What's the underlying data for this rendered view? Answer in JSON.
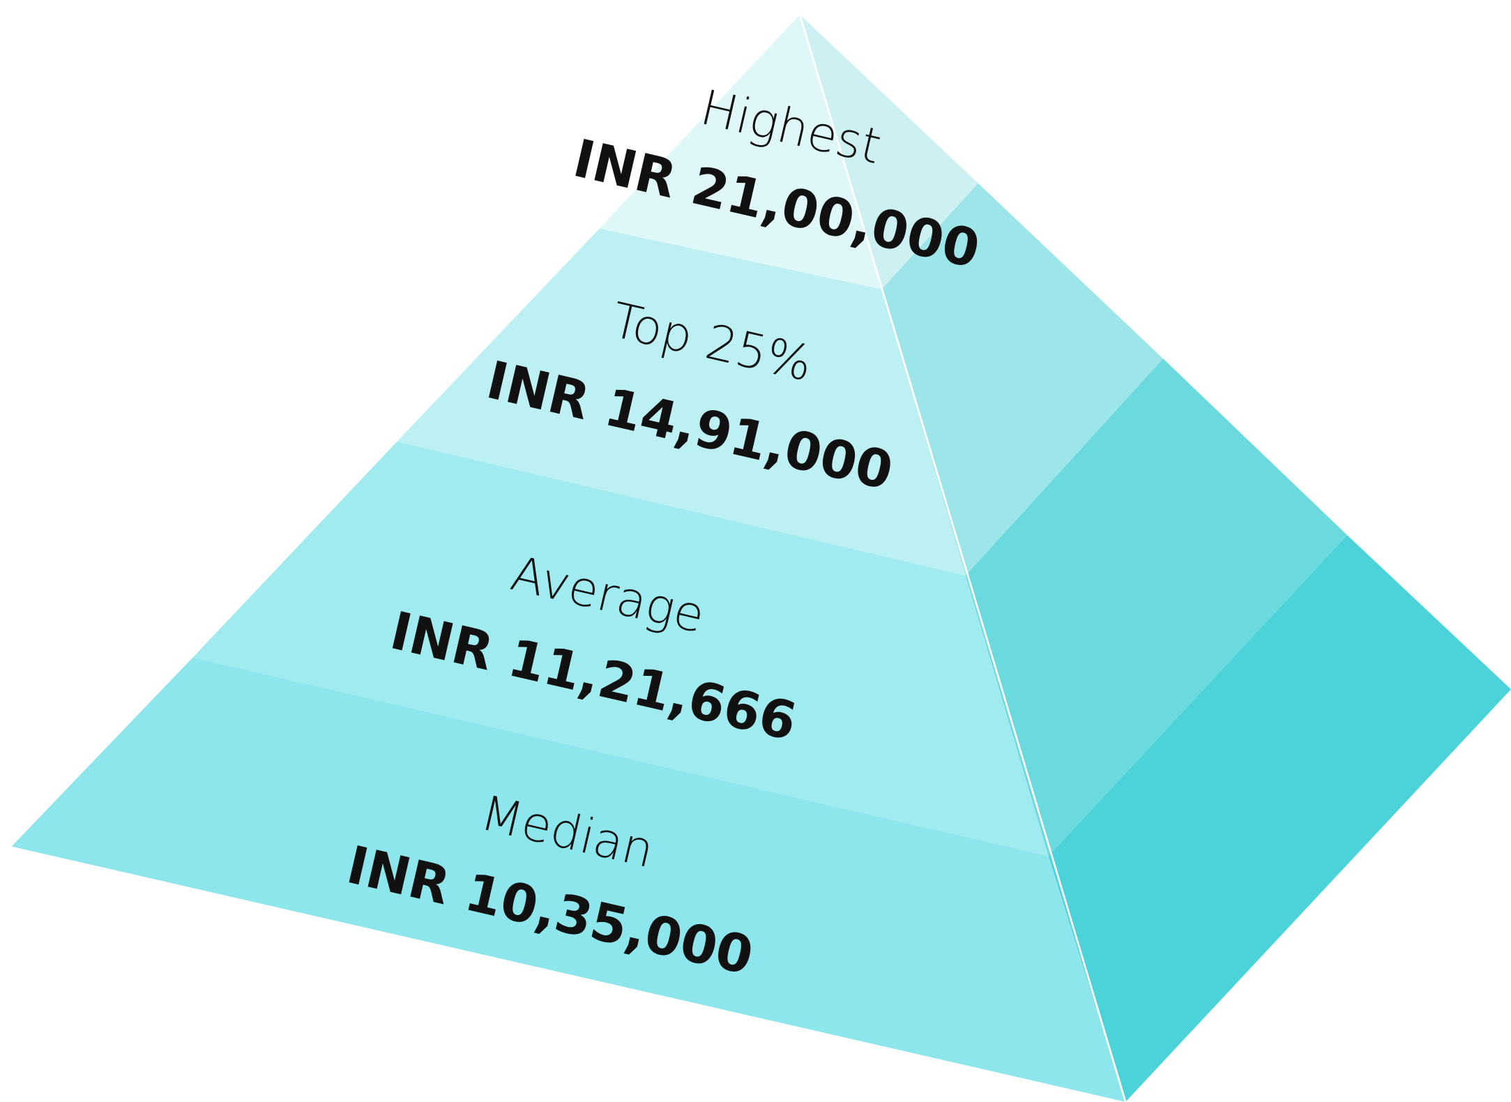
{
  "levels": [
    {
      "label": "Highest",
      "value": "INR 21,00,000"
    },
    {
      "label": "Top 25%",
      "value": "INR 14,91,000"
    },
    {
      "label": "Average",
      "value": "INR 11,21,666"
    },
    {
      "label": "Median",
      "value": "INR 10,35,000"
    }
  ]
}
